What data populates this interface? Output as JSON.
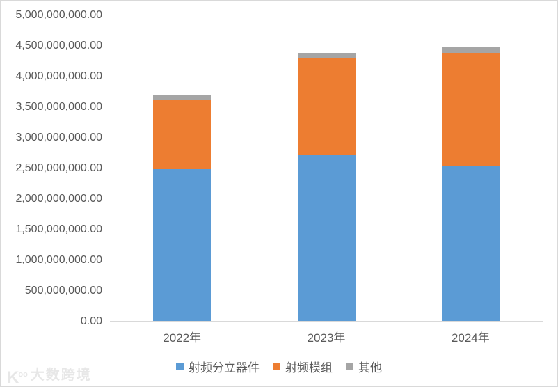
{
  "chart_data": {
    "type": "bar",
    "stacked": true,
    "title": "",
    "xlabel": "",
    "ylabel": "",
    "categories": [
      "2022年",
      "2023年",
      "2024年"
    ],
    "series": [
      {
        "name": "射频分立器件",
        "color": "#5B9BD5",
        "values": [
          2480000000,
          2720000000,
          2520000000
        ]
      },
      {
        "name": "射频模组",
        "color": "#ED7D31",
        "values": [
          1120000000,
          1580000000,
          1860000000
        ]
      },
      {
        "name": "其他",
        "color": "#A5A5A5",
        "values": [
          80000000,
          70000000,
          100000000
        ]
      }
    ],
    "ylim": [
      0,
      5000000000
    ],
    "y_tick_step": 500000000,
    "y_tick_labels": [
      "0.00",
      "500,000,000.00",
      "1,000,000,000.00",
      "1,500,000,000.00",
      "2,000,000,000.00",
      "2,500,000,000.00",
      "3,000,000,000.00",
      "3,500,000,000.00",
      "4,000,000,000.00",
      "4,500,000,000.00",
      "5,000,000,000.00"
    ],
    "grid": false,
    "legend_position": "bottom"
  },
  "watermark": {
    "logo": "K",
    "logo_sup": "oo",
    "text": "大数跨境"
  },
  "colors": {
    "axis_text": "#595959",
    "axis_line": "#D9D9D9",
    "frame_border": "#D9D9D9",
    "watermark": "#E7E7E7"
  }
}
